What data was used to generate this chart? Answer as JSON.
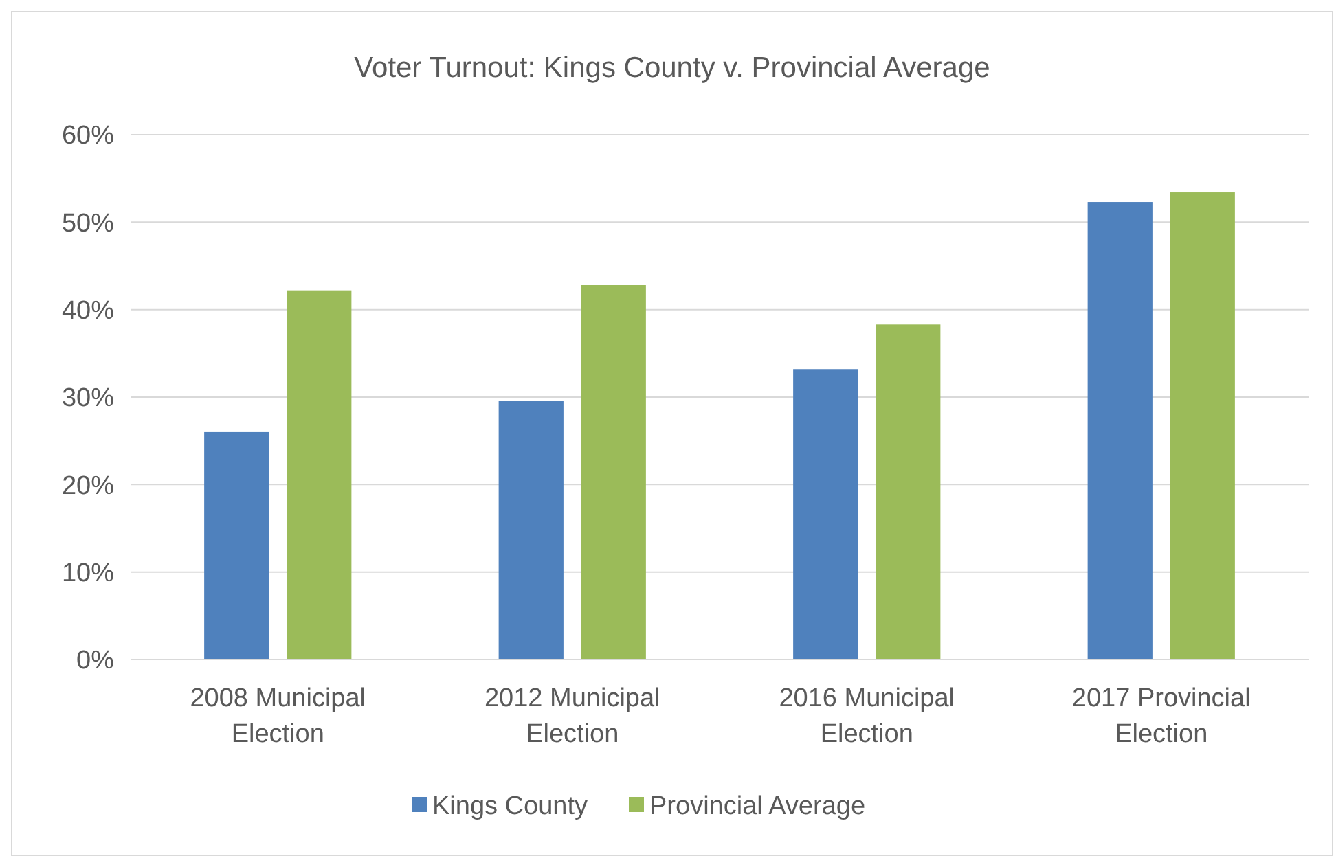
{
  "chart_data": {
    "type": "bar",
    "title": "Voter Turnout: Kings County v. Provincial Average",
    "categories": [
      "2008 Municipal Election",
      "2012 Municipal Election",
      "2016 Municipal Election",
      "2017 Provincial Election"
    ],
    "series": [
      {
        "name": "Kings County",
        "color": "#4f81bd",
        "values": [
          26.0,
          29.6,
          33.2,
          52.3
        ]
      },
      {
        "name": "Provincial Average",
        "color": "#9bbb59",
        "values": [
          42.2,
          42.8,
          38.3,
          53.4
        ]
      }
    ],
    "ylim": [
      0,
      60
    ],
    "yticks": [
      {
        "value": 0,
        "label": "0%"
      },
      {
        "value": 10,
        "label": "10%"
      },
      {
        "value": 20,
        "label": "20%"
      },
      {
        "value": 30,
        "label": "30%"
      },
      {
        "value": 40,
        "label": "40%"
      },
      {
        "value": 50,
        "label": "50%"
      },
      {
        "value": 60,
        "label": "60%"
      }
    ],
    "grid": "y",
    "legend": "bottom"
  }
}
